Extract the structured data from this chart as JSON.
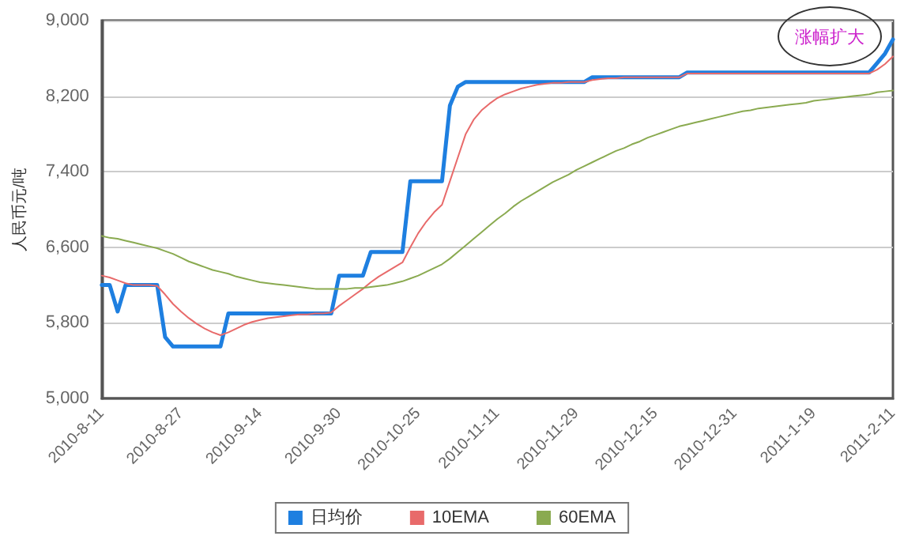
{
  "chart_data": {
    "type": "line",
    "ylabel": "人民币元/吨",
    "categories": [
      "2010-8-11",
      null,
      null,
      null,
      null,
      null,
      null,
      null,
      null,
      null,
      "2010-8-27",
      null,
      null,
      null,
      null,
      null,
      null,
      null,
      null,
      null,
      "2010-9-14",
      null,
      null,
      null,
      null,
      null,
      null,
      null,
      null,
      null,
      "2010-9-30",
      null,
      null,
      null,
      null,
      null,
      null,
      null,
      null,
      null,
      "2010-10-25",
      null,
      null,
      null,
      null,
      null,
      null,
      null,
      null,
      null,
      "2010-11-11",
      null,
      null,
      null,
      null,
      null,
      null,
      null,
      null,
      null,
      "2010-11-29",
      null,
      null,
      null,
      null,
      null,
      null,
      null,
      null,
      null,
      "2010-12-15",
      null,
      null,
      null,
      null,
      null,
      null,
      null,
      null,
      null,
      "2010-12-31",
      null,
      null,
      null,
      null,
      null,
      null,
      null,
      null,
      null,
      "2011-1-19",
      null,
      null,
      null,
      null,
      null,
      null,
      null,
      null,
      null,
      "2011-2-11"
    ],
    "series": [
      {
        "name": "日均价",
        "color": "#1e7fe0",
        "values": [
          6200,
          6200,
          5920,
          6200,
          6200,
          6200,
          6200,
          6200,
          5650,
          5550,
          5550,
          5550,
          5550,
          5550,
          5550,
          5550,
          5900,
          5900,
          5900,
          5900,
          5900,
          5900,
          5900,
          5900,
          5900,
          5900,
          5900,
          5900,
          5900,
          5900,
          6300,
          6300,
          6300,
          6300,
          6550,
          6550,
          6550,
          6550,
          6550,
          7300,
          7300,
          7300,
          7300,
          7300,
          8100,
          8300,
          8350,
          8350,
          8350,
          8350,
          8350,
          8350,
          8350,
          8350,
          8350,
          8350,
          8350,
          8350,
          8350,
          8350,
          8350,
          8350,
          8400,
          8400,
          8400,
          8400,
          8400,
          8400,
          8400,
          8400,
          8400,
          8400,
          8400,
          8400,
          8450,
          8450,
          8450,
          8450,
          8450,
          8450,
          8450,
          8450,
          8450,
          8450,
          8450,
          8450,
          8450,
          8450,
          8450,
          8450,
          8450,
          8450,
          8450,
          8450,
          8450,
          8450,
          8450,
          8450,
          8550,
          8650,
          8800
        ]
      },
      {
        "name": "10EMA",
        "color": "#e86a6a",
        "values": [
          6300,
          6280,
          6250,
          6220,
          6200,
          6200,
          6200,
          6190,
          6100,
          6000,
          5920,
          5850,
          5790,
          5740,
          5700,
          5670,
          5700,
          5740,
          5780,
          5810,
          5830,
          5850,
          5860,
          5870,
          5880,
          5890,
          5890,
          5900,
          5900,
          5910,
          5980,
          6040,
          6100,
          6160,
          6230,
          6290,
          6340,
          6390,
          6440,
          6600,
          6750,
          6870,
          6970,
          7050,
          7300,
          7550,
          7800,
          7950,
          8050,
          8120,
          8180,
          8220,
          8250,
          8280,
          8300,
          8320,
          8330,
          8340,
          8340,
          8350,
          8350,
          8350,
          8370,
          8380,
          8390,
          8390,
          8400,
          8400,
          8400,
          8400,
          8400,
          8400,
          8400,
          8400,
          8440,
          8440,
          8440,
          8440,
          8440,
          8440,
          8440,
          8440,
          8440,
          8440,
          8440,
          8440,
          8440,
          8440,
          8440,
          8440,
          8440,
          8440,
          8440,
          8440,
          8440,
          8440,
          8440,
          8440,
          8480,
          8540,
          8620
        ]
      },
      {
        "name": "60EMA",
        "color": "#8aaa50",
        "values": [
          6720,
          6700,
          6690,
          6670,
          6650,
          6630,
          6610,
          6590,
          6560,
          6530,
          6490,
          6450,
          6420,
          6390,
          6360,
          6340,
          6320,
          6290,
          6270,
          6250,
          6230,
          6220,
          6210,
          6200,
          6190,
          6180,
          6170,
          6160,
          6160,
          6160,
          6160,
          6160,
          6170,
          6170,
          6180,
          6190,
          6200,
          6220,
          6240,
          6270,
          6300,
          6340,
          6380,
          6420,
          6480,
          6550,
          6620,
          6690,
          6760,
          6830,
          6900,
          6960,
          7030,
          7090,
          7140,
          7190,
          7240,
          7290,
          7330,
          7370,
          7420,
          7460,
          7500,
          7540,
          7580,
          7620,
          7650,
          7690,
          7720,
          7760,
          7790,
          7820,
          7850,
          7880,
          7900,
          7920,
          7940,
          7960,
          7980,
          8000,
          8020,
          8040,
          8050,
          8070,
          8080,
          8090,
          8100,
          8110,
          8120,
          8130,
          8150,
          8160,
          8170,
          8180,
          8190,
          8200,
          8210,
          8220,
          8240,
          8250,
          8260
        ]
      }
    ],
    "ylim": [
      5000,
      9000
    ],
    "yticks": [
      {
        "value": 5000,
        "label": "5,000"
      },
      {
        "value": 5800,
        "label": "5,800"
      },
      {
        "value": 6600,
        "label": "6,600"
      },
      {
        "value": 7400,
        "label": "7,400"
      },
      {
        "value": 8200,
        "label": "8,200"
      },
      {
        "value": 9000,
        "label": "9,000"
      }
    ],
    "grid": "y",
    "legend": "bottom",
    "marker": "none",
    "line_style": "solid",
    "annotations": [
      "涨幅扩大"
    ]
  }
}
